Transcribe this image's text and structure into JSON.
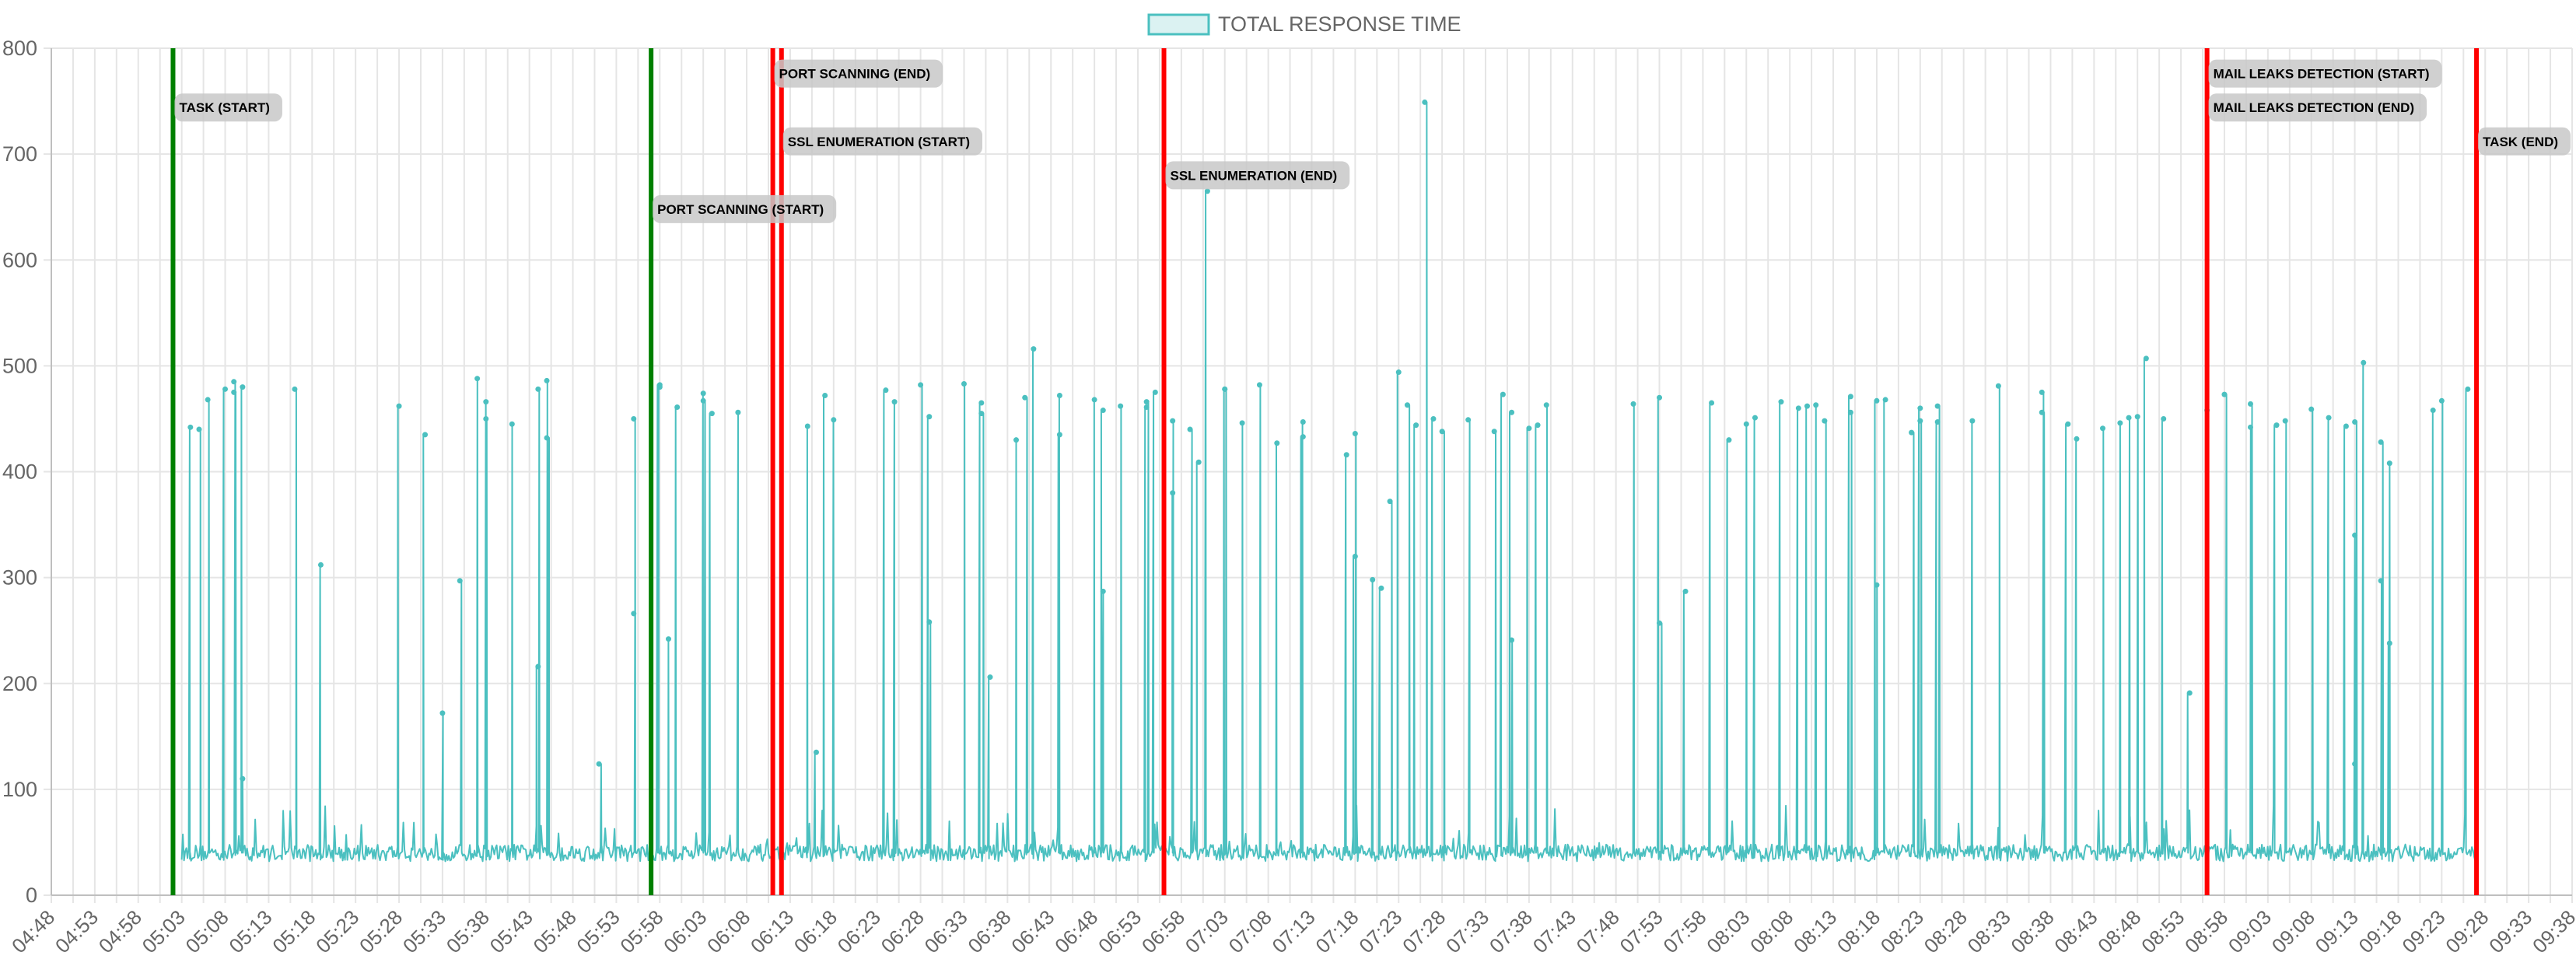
{
  "chart_data": {
    "type": "line",
    "title": "",
    "xlabel": "",
    "ylabel": "",
    "ylim": [
      0,
      800
    ],
    "y_ticks": [
      0,
      100,
      200,
      300,
      400,
      500,
      600,
      700,
      800
    ],
    "grid": true,
    "legend_position": "top-center",
    "x_ticks": [
      "04:48",
      "04:53",
      "04:58",
      "05:03",
      "05:08",
      "05:13",
      "05:18",
      "05:23",
      "05:28",
      "05:33",
      "05:38",
      "05:43",
      "05:48",
      "05:53",
      "05:58",
      "06:03",
      "06:08",
      "06:13",
      "06:18",
      "06:23",
      "06:28",
      "06:33",
      "06:38",
      "06:43",
      "06:48",
      "06:53",
      "06:58",
      "07:03",
      "07:08",
      "07:13",
      "07:18",
      "07:23",
      "07:28",
      "07:33",
      "07:38",
      "07:43",
      "07:48",
      "07:53",
      "07:58",
      "08:03",
      "08:08",
      "08:13",
      "08:18",
      "08:23",
      "08:28",
      "08:33",
      "08:38",
      "08:43",
      "08:48",
      "08:53",
      "08:58",
      "09:03",
      "09:08",
      "09:13",
      "09:18",
      "09:23",
      "09:28",
      "09:33",
      "09:38"
    ],
    "series": [
      {
        "name": "TOTAL RESPONSE TIME",
        "color": "#4bc0c0",
        "x_start": "05:03",
        "x_end": "09:27",
        "baseline": 40,
        "peaks": [
          {
            "t": "05:04",
            "v": 442
          },
          {
            "t": "05:05",
            "v": 440
          },
          {
            "t": "05:06",
            "v": 468
          },
          {
            "t": "05:08",
            "v": 478
          },
          {
            "t": "05:09",
            "v": 485
          },
          {
            "t": "05:09",
            "v": 475
          },
          {
            "t": "05:10",
            "v": 110
          },
          {
            "t": "05:10",
            "v": 480
          },
          {
            "t": "05:16",
            "v": 478
          },
          {
            "t": "05:19",
            "v": 312
          },
          {
            "t": "05:28",
            "v": 462
          },
          {
            "t": "05:31",
            "v": 435
          },
          {
            "t": "05:33",
            "v": 172
          },
          {
            "t": "05:35",
            "v": 297
          },
          {
            "t": "05:37",
            "v": 488
          },
          {
            "t": "05:38",
            "v": 466
          },
          {
            "t": "05:38",
            "v": 450
          },
          {
            "t": "05:41",
            "v": 445
          },
          {
            "t": "05:44",
            "v": 478
          },
          {
            "t": "05:44",
            "v": 216
          },
          {
            "t": "05:45",
            "v": 432
          },
          {
            "t": "05:45",
            "v": 486
          },
          {
            "t": "05:51",
            "v": 124
          },
          {
            "t": "05:55",
            "v": 450
          },
          {
            "t": "05:55",
            "v": 266
          },
          {
            "t": "05:58",
            "v": 482
          },
          {
            "t": "05:58",
            "v": 480
          },
          {
            "t": "05:59",
            "v": 242
          },
          {
            "t": "06:00",
            "v": 461
          },
          {
            "t": "06:03",
            "v": 467
          },
          {
            "t": "06:03",
            "v": 474
          },
          {
            "t": "06:04",
            "v": 455
          },
          {
            "t": "06:07",
            "v": 456
          },
          {
            "t": "06:15",
            "v": 443
          },
          {
            "t": "06:16",
            "v": 135
          },
          {
            "t": "06:17",
            "v": 472
          },
          {
            "t": "06:18",
            "v": 449
          },
          {
            "t": "06:24",
            "v": 477
          },
          {
            "t": "06:25",
            "v": 466
          },
          {
            "t": "06:28",
            "v": 482
          },
          {
            "t": "06:29",
            "v": 452
          },
          {
            "t": "06:29",
            "v": 258
          },
          {
            "t": "06:33",
            "v": 483
          },
          {
            "t": "06:35",
            "v": 465
          },
          {
            "t": "06:35",
            "v": 455
          },
          {
            "t": "06:36",
            "v": 206
          },
          {
            "t": "06:39",
            "v": 430
          },
          {
            "t": "06:40",
            "v": 470
          },
          {
            "t": "06:41",
            "v": 516
          },
          {
            "t": "06:44",
            "v": 435
          },
          {
            "t": "06:44",
            "v": 472
          },
          {
            "t": "06:48",
            "v": 468
          },
          {
            "t": "06:49",
            "v": 458
          },
          {
            "t": "06:49",
            "v": 287
          },
          {
            "t": "06:51",
            "v": 462
          },
          {
            "t": "06:54",
            "v": 466
          },
          {
            "t": "06:54",
            "v": 461
          },
          {
            "t": "06:55",
            "v": 475
          },
          {
            "t": "06:57",
            "v": 448
          },
          {
            "t": "06:57",
            "v": 380
          },
          {
            "t": "06:59",
            "v": 440
          },
          {
            "t": "07:00",
            "v": 409
          },
          {
            "t": "07:01",
            "v": 665
          },
          {
            "t": "07:03",
            "v": 478
          },
          {
            "t": "07:03",
            "v": 478
          },
          {
            "t": "07:05",
            "v": 446
          },
          {
            "t": "07:07",
            "v": 482
          },
          {
            "t": "07:09",
            "v": 427
          },
          {
            "t": "07:12",
            "v": 433
          },
          {
            "t": "07:12",
            "v": 447
          },
          {
            "t": "07:17",
            "v": 416
          },
          {
            "t": "07:18",
            "v": 320
          },
          {
            "t": "07:18",
            "v": 436
          },
          {
            "t": "07:20",
            "v": 298
          },
          {
            "t": "07:21",
            "v": 290
          },
          {
            "t": "07:22",
            "v": 372
          },
          {
            "t": "07:23",
            "v": 494
          },
          {
            "t": "07:24",
            "v": 463
          },
          {
            "t": "07:25",
            "v": 444
          },
          {
            "t": "07:26",
            "v": 749
          },
          {
            "t": "07:27",
            "v": 450
          },
          {
            "t": "07:28",
            "v": 438
          },
          {
            "t": "07:31",
            "v": 449
          },
          {
            "t": "07:34",
            "v": 438
          },
          {
            "t": "07:35",
            "v": 473
          },
          {
            "t": "07:36",
            "v": 456
          },
          {
            "t": "07:36",
            "v": 241
          },
          {
            "t": "07:38",
            "v": 441
          },
          {
            "t": "07:39",
            "v": 444
          },
          {
            "t": "07:40",
            "v": 463
          },
          {
            "t": "07:50",
            "v": 464
          },
          {
            "t": "07:53",
            "v": 257
          },
          {
            "t": "07:53",
            "v": 470
          },
          {
            "t": "07:56",
            "v": 287
          },
          {
            "t": "07:59",
            "v": 465
          },
          {
            "t": "08:01",
            "v": 430
          },
          {
            "t": "08:03",
            "v": 445
          },
          {
            "t": "08:04",
            "v": 451
          },
          {
            "t": "08:07",
            "v": 466
          },
          {
            "t": "08:09",
            "v": 460
          },
          {
            "t": "08:10",
            "v": 462
          },
          {
            "t": "08:11",
            "v": 463
          },
          {
            "t": "08:12",
            "v": 448
          },
          {
            "t": "08:15",
            "v": 471
          },
          {
            "t": "08:15",
            "v": 456
          },
          {
            "t": "08:18",
            "v": 293
          },
          {
            "t": "08:18",
            "v": 467
          },
          {
            "t": "08:19",
            "v": 468
          },
          {
            "t": "08:22",
            "v": 437
          },
          {
            "t": "08:23",
            "v": 460
          },
          {
            "t": "08:23",
            "v": 448
          },
          {
            "t": "08:25",
            "v": 462
          },
          {
            "t": "08:25",
            "v": 447
          },
          {
            "t": "08:29",
            "v": 448
          },
          {
            "t": "08:32",
            "v": 481
          },
          {
            "t": "08:37",
            "v": 475
          },
          {
            "t": "08:37",
            "v": 456
          },
          {
            "t": "08:40",
            "v": 445
          },
          {
            "t": "08:41",
            "v": 431
          },
          {
            "t": "08:44",
            "v": 441
          },
          {
            "t": "08:46",
            "v": 446
          },
          {
            "t": "08:47",
            "v": 451
          },
          {
            "t": "08:48",
            "v": 452
          },
          {
            "t": "08:49",
            "v": 507
          },
          {
            "t": "08:51",
            "v": 450
          },
          {
            "t": "08:54",
            "v": 191
          },
          {
            "t": "08:56",
            "v": 458
          },
          {
            "t": "08:58",
            "v": 473
          },
          {
            "t": "09:01",
            "v": 442
          },
          {
            "t": "09:01",
            "v": 464
          },
          {
            "t": "09:04",
            "v": 444
          },
          {
            "t": "09:05",
            "v": 448
          },
          {
            "t": "09:08",
            "v": 459
          },
          {
            "t": "09:10",
            "v": 451
          },
          {
            "t": "09:12",
            "v": 443
          },
          {
            "t": "09:13",
            "v": 340
          },
          {
            "t": "09:13",
            "v": 447
          },
          {
            "t": "09:13",
            "v": 124
          },
          {
            "t": "09:14",
            "v": 503
          },
          {
            "t": "09:16",
            "v": 428
          },
          {
            "t": "09:16",
            "v": 297
          },
          {
            "t": "09:17",
            "v": 238
          },
          {
            "t": "09:17",
            "v": 408
          },
          {
            "t": "09:22",
            "v": 458
          },
          {
            "t": "09:23",
            "v": 467
          },
          {
            "t": "09:26",
            "v": 478
          }
        ]
      }
    ],
    "annotations": [
      {
        "label": "TASK (START)",
        "t": "05:02",
        "color": "#008000",
        "label_y": 744
      },
      {
        "label": "PORT SCANNING (START)",
        "t": "05:57",
        "color": "#008000",
        "label_y": 648
      },
      {
        "label": "PORT SCANNING (END)",
        "t": "06:11",
        "color": "#ff0000",
        "label_y": 776
      },
      {
        "label": "SSL ENUMERATION (START)",
        "t": "06:12",
        "color": "#ff0000",
        "label_y": 712
      },
      {
        "label": "SSL ENUMERATION (END)",
        "t": "06:56",
        "color": "#ff0000",
        "label_y": 680
      },
      {
        "label": "MAIL LEAKS DETECTION (START)",
        "t": "08:56",
        "color": "#ff0000",
        "label_y": 776
      },
      {
        "label": "MAIL LEAKS DETECTION (END)",
        "t": "08:56",
        "color": "#ff0000",
        "label_y": 744
      },
      {
        "label": "TASK (END)",
        "t": "09:27",
        "color": "#ff0000",
        "label_y": 712
      }
    ]
  }
}
